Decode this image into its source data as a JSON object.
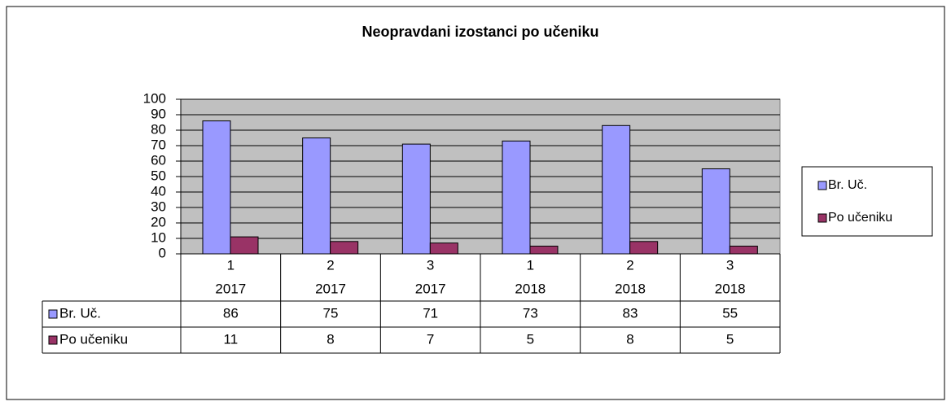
{
  "chart_data": {
    "type": "bar",
    "title": "Neopravdani  izostanci po učeniku",
    "categories": [
      [
        "1",
        "2017"
      ],
      [
        "2",
        "2017"
      ],
      [
        "3",
        "2017"
      ],
      [
        "1",
        "2018"
      ],
      [
        "2",
        "2018"
      ],
      [
        "3",
        "2018"
      ]
    ],
    "series": [
      {
        "name": "Br. Uč.",
        "color": "#9999ff",
        "values": [
          86,
          75,
          71,
          73,
          83,
          55
        ]
      },
      {
        "name": "Po učeniku",
        "color": "#993366",
        "values": [
          11,
          8,
          7,
          5,
          8,
          5
        ]
      }
    ],
    "ylim": [
      0,
      100
    ],
    "yticks": [
      0,
      10,
      20,
      30,
      40,
      50,
      60,
      70,
      80,
      90,
      100
    ],
    "grid": true,
    "legend": "right",
    "plot_background": "#c0c0c0"
  }
}
